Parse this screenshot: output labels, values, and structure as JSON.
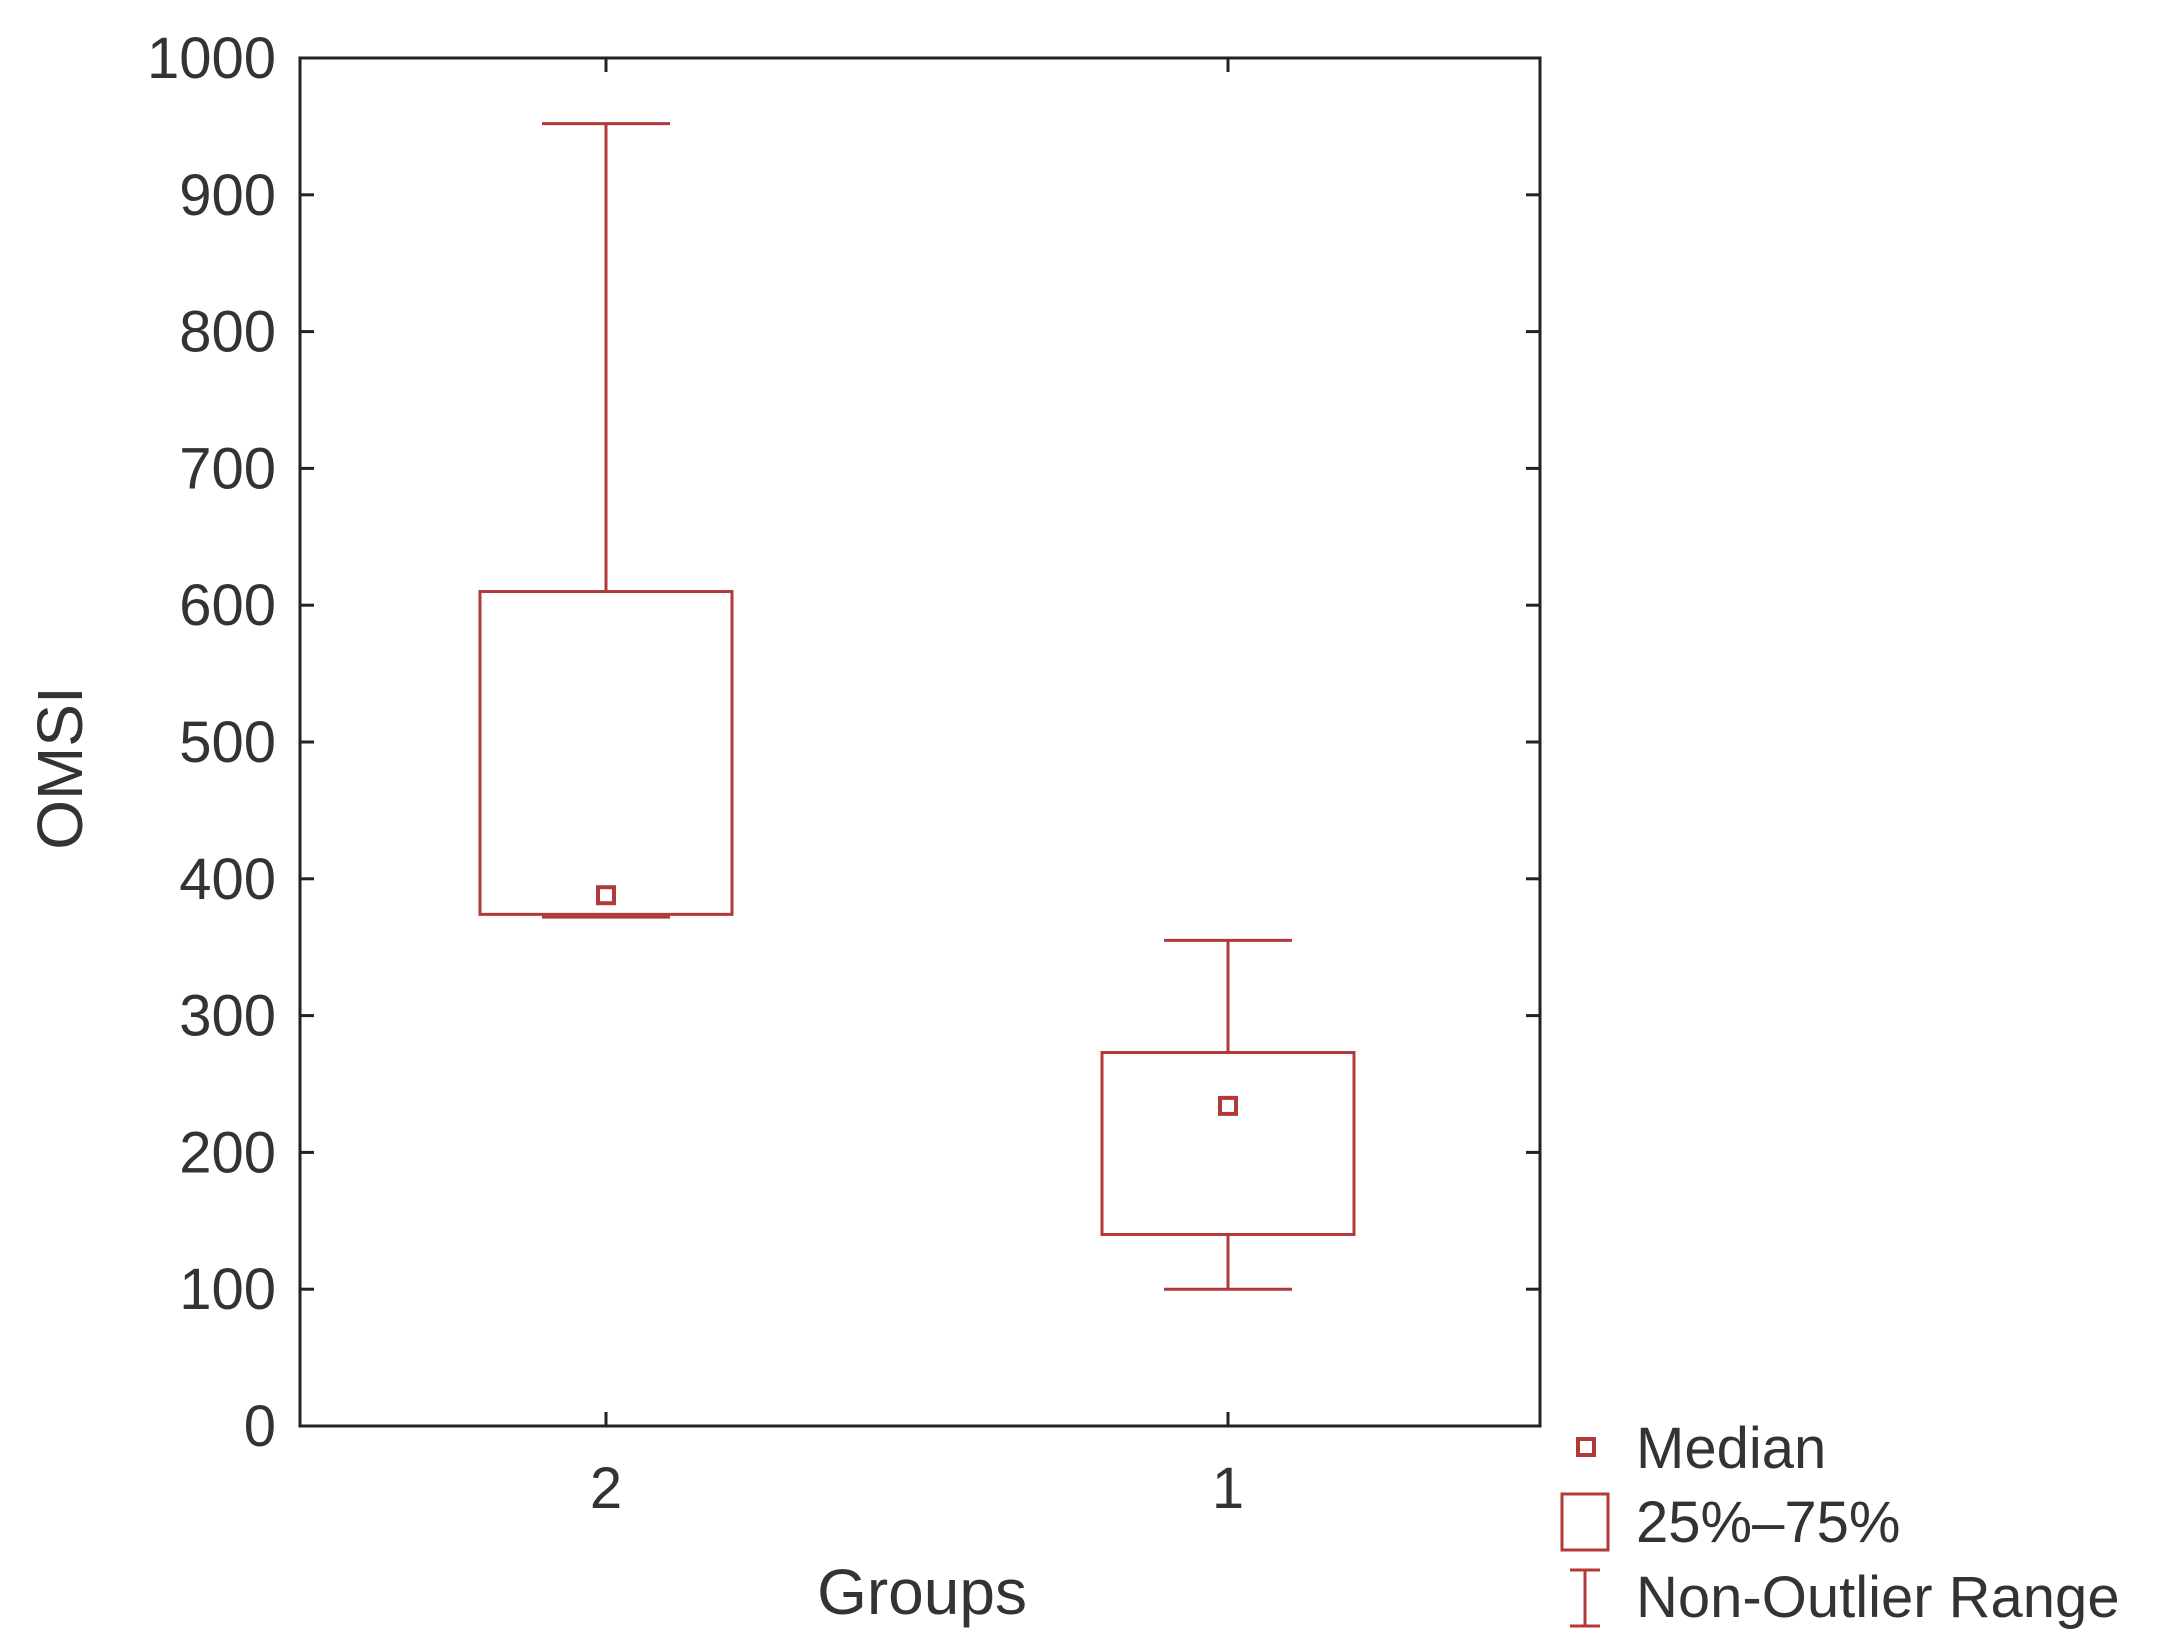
{
  "chart_data": {
    "type": "boxplot",
    "xlabel": "Groups",
    "ylabel": "OMSI",
    "ylim": [
      0,
      1000
    ],
    "yticks": [
      0,
      100,
      200,
      300,
      400,
      500,
      600,
      700,
      800,
      900,
      1000
    ],
    "categories": [
      "2",
      "1"
    ],
    "boxes": [
      {
        "category": "2",
        "min": 372,
        "q1": 374,
        "median": 388,
        "q3": 610,
        "max": 952
      },
      {
        "category": "1",
        "min": 100,
        "q1": 140,
        "median": 234,
        "q3": 273,
        "max": 355
      }
    ],
    "color": "#b03a3a",
    "grid": false,
    "legend_position": "bottom-right outside",
    "legend": {
      "median": "Median",
      "box": "25%–75%",
      "whisker": "Non-Outlier Range"
    }
  }
}
